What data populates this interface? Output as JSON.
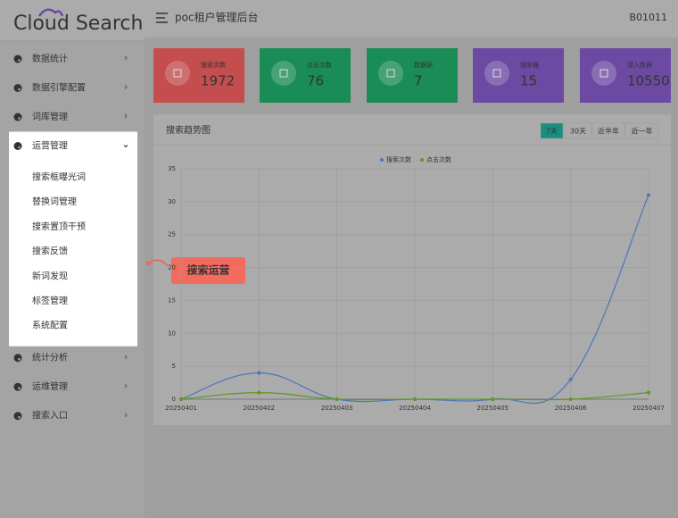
{
  "logo": "Cloud Search",
  "header": {
    "title": "poc租户管理后台",
    "user": "B01011"
  },
  "menu": [
    {
      "label": "数据统计"
    },
    {
      "label": "数据引擎配置"
    },
    {
      "label": "词库管理"
    },
    {
      "label": "运营管理",
      "children": [
        "搜索框曝光词",
        "替换词管理",
        "搜索置顶干预",
        "搜索反馈",
        "新词发现",
        "标签管理",
        "系统配置"
      ]
    },
    {
      "label": "统计分析"
    },
    {
      "label": "运维管理"
    },
    {
      "label": "搜索入口"
    }
  ],
  "callout": "搜索运营",
  "stats": [
    {
      "label": "搜索次数",
      "value": 1972,
      "color": "#c44d4d"
    },
    {
      "label": "点击次数",
      "value": 76,
      "color": "#1a8c55"
    },
    {
      "label": "数据源",
      "value": 7,
      "color": "#1a8c55"
    },
    {
      "label": "搜索器",
      "value": 15,
      "color": "#6c4aa3"
    },
    {
      "label": "接入数据",
      "value": 10550,
      "color": "#6c4aa3"
    }
  ],
  "panel": {
    "title": "搜索趋势图",
    "ranges": [
      "7天",
      "30天",
      "近半年",
      "近一年"
    ],
    "active_range": 0
  },
  "chart_data": {
    "type": "line",
    "categories": [
      "20250401",
      "20250402",
      "20250403",
      "20250404",
      "20250405",
      "20250406",
      "20250407"
    ],
    "series": [
      {
        "name": "搜索次数",
        "color": "#4a78b8",
        "values": [
          0,
          4,
          0,
          0,
          0,
          3,
          31
        ]
      },
      {
        "name": "点击次数",
        "color": "#5c9a1c",
        "values": [
          0,
          1,
          0,
          0,
          0,
          0,
          1
        ]
      }
    ],
    "ylim": [
      0,
      35
    ],
    "yticks": [
      0,
      5,
      10,
      15,
      20,
      25,
      30,
      35
    ],
    "grid": true,
    "legend": "top"
  }
}
